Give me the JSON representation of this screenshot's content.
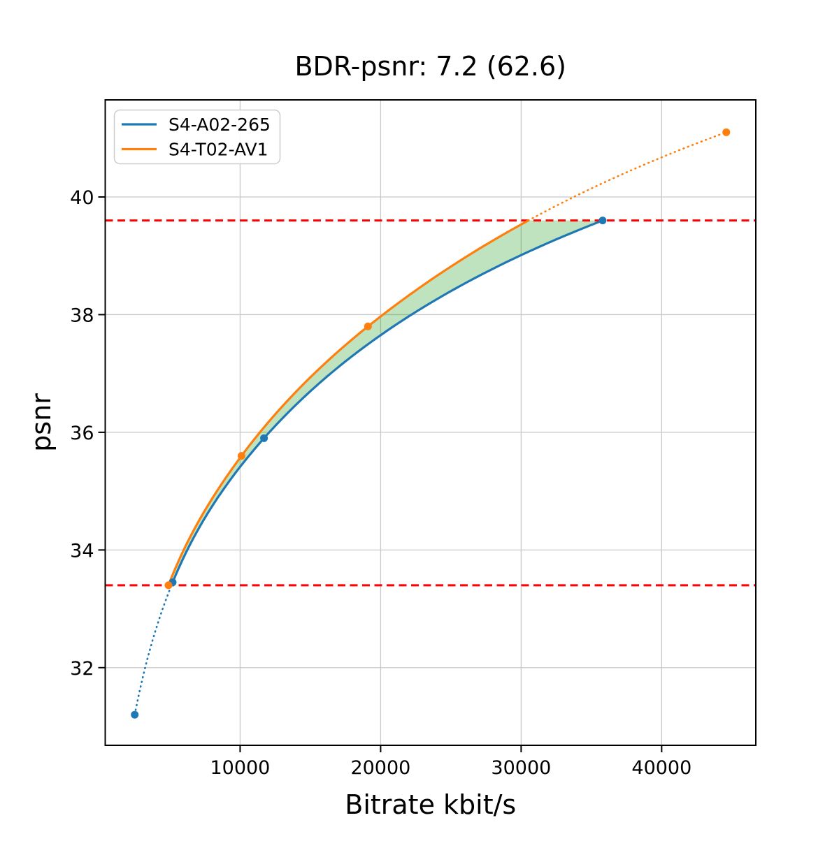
{
  "title": "BDR-psnr: 7.2 (62.6)",
  "chart_data": {
    "type": "line",
    "title": "BDR-psnr: 7.2 (62.6)",
    "xlabel": "Bitrate kbit/s",
    "ylabel": "psnr",
    "xlim": [
      400,
      46700
    ],
    "ylim": [
      30.68,
      41.65
    ],
    "xticks": [
      10000,
      20000,
      30000,
      40000
    ],
    "yticks": [
      32,
      34,
      36,
      38,
      40
    ],
    "grid": true,
    "legend_position": "upper left",
    "series": [
      {
        "name": "S4-A02-265",
        "color": "#1f77b4",
        "points": [
          [
            2500,
            31.2
          ],
          [
            5200,
            33.45
          ],
          [
            11700,
            35.9
          ],
          [
            35800,
            39.6
          ]
        ],
        "dotted_segment": "start",
        "note": "dotted from first point to second point, solid afterwards"
      },
      {
        "name": "S4-T02-AV1",
        "color": "#ff7f0e",
        "points": [
          [
            4900,
            33.4
          ],
          [
            10100,
            35.6
          ],
          [
            19100,
            37.8
          ],
          [
            44600,
            41.1
          ]
        ],
        "dotted_segment": "end",
        "note": "solid until curve crosses upper red line (~31100 kbit/s), dotted afterwards"
      }
    ],
    "hlines": {
      "values": [
        33.4,
        39.6
      ],
      "color": "#ff0000",
      "style": "dashed"
    },
    "fill_between": {
      "color": "#2ca02c",
      "opacity": 0.3,
      "psnr_range": [
        33.4,
        39.6
      ]
    },
    "grid_color": "#c8c8c8",
    "frame_color": "#000000",
    "background_color": "#ffffff"
  }
}
